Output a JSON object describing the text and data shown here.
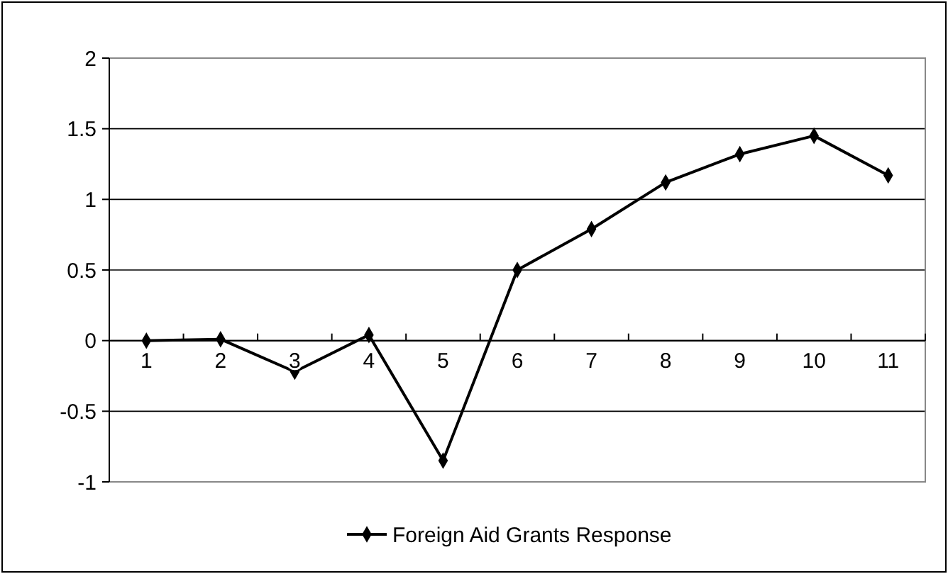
{
  "chart_data": {
    "type": "line",
    "categories": [
      "1",
      "2",
      "3",
      "4",
      "5",
      "6",
      "7",
      "8",
      "9",
      "10",
      "11"
    ],
    "series": [
      {
        "name": "Foreign Aid Grants Response",
        "color": "#000000",
        "values": [
          0,
          0.01,
          -0.22,
          0.04,
          -0.85,
          0.5,
          0.79,
          1.12,
          1.32,
          1.45,
          1.17
        ]
      }
    ],
    "ylim": [
      -1,
      2
    ],
    "yticks": [
      -1,
      -0.5,
      0,
      0.5,
      1,
      1.5,
      2
    ],
    "grid": "y",
    "legend": "bottom",
    "marker": "diamond",
    "line_style": "solid"
  }
}
